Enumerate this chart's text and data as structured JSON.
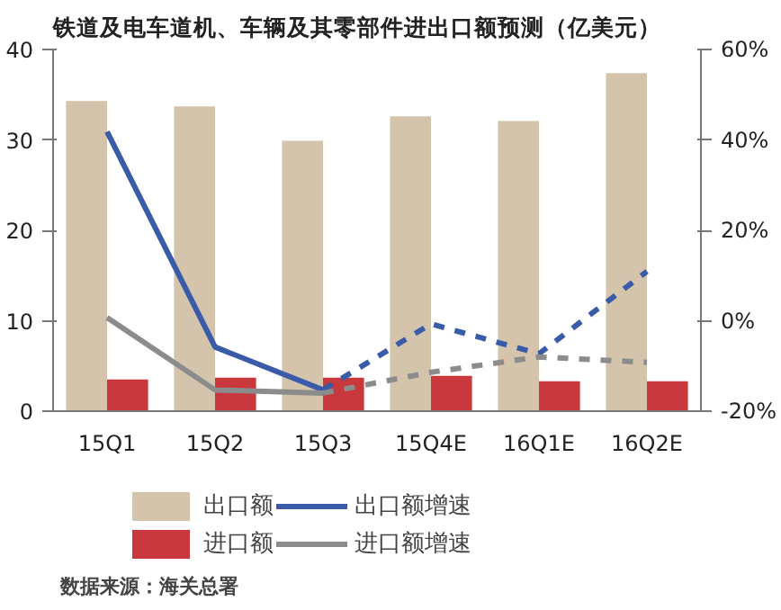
{
  "chart_data": {
    "type": "bar",
    "title": "铁道及电车道机、车辆及其零部件进出口额预测（亿美元）",
    "categories": [
      "15Q1",
      "15Q2",
      "15Q3",
      "15Q4E",
      "16Q1E",
      "16Q2E"
    ],
    "series": [
      {
        "name": "出口额",
        "type": "bar",
        "color": "#d4c4ac",
        "values": [
          34.3,
          33.7,
          29.9,
          32.6,
          32.1,
          37.4
        ]
      },
      {
        "name": "进口额",
        "type": "bar",
        "color": "#c8383c",
        "values": [
          3.5,
          3.7,
          3.7,
          3.9,
          3.3,
          3.3
        ]
      },
      {
        "name": "出口额增速",
        "type": "line",
        "axis": "y2",
        "line_style": "solid",
        "color": "#3a5ba8",
        "values": [
          41.8,
          -5.8,
          -15.3,
          null,
          null,
          null
        ]
      },
      {
        "name": "进口额增速",
        "type": "line",
        "axis": "y2",
        "line_style": "solid",
        "color": "#8c8c8c",
        "values": [
          0.7,
          -15.3,
          -16,
          null,
          null,
          null
        ]
      },
      {
        "type": "line",
        "axis": "y2",
        "line_style": "dashed",
        "color": "#3a5ba8",
        "values": [
          null,
          null,
          -15.3,
          -0.7,
          -7.3,
          10.9
        ]
      },
      {
        "type": "line",
        "axis": "y2",
        "line_style": "dashed",
        "color": "#8c8c8c",
        "values": [
          null,
          null,
          -16,
          -11.4,
          -8,
          -9.2
        ]
      }
    ],
    "ylim": [
      0,
      40
    ],
    "yticks": [
      0,
      10,
      20,
      30,
      40
    ],
    "y2lim": [
      -20,
      60
    ],
    "y2ticks": [
      {
        "value": -20,
        "label": "-20%"
      },
      {
        "value": 0,
        "label": "0%"
      },
      {
        "value": 20,
        "label": "20%"
      },
      {
        "value": 40,
        "label": "40%"
      },
      {
        "value": 60,
        "label": "60%"
      }
    ],
    "legend": "bottom",
    "grid": false,
    "marker": "none",
    "annotations": [
      "数据来源：海关总署"
    ]
  }
}
